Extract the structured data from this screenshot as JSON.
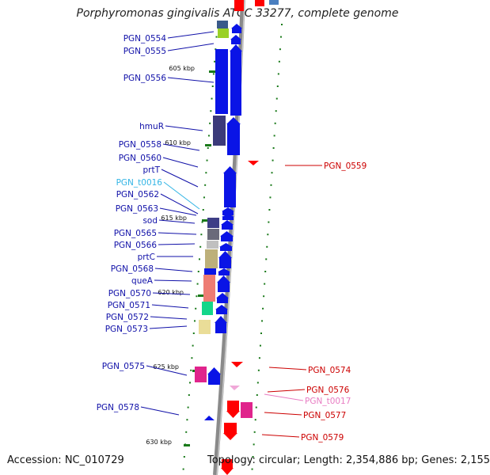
{
  "title": "Porphyromonas gingivalis ATCC 33277, complete genome",
  "accession": "Accession: NC_010729",
  "topology": "Topology: circular; Length: 2,354,886 bp; Genes: 2,155",
  "colors": {
    "plus_label": "#1010a8",
    "minus_label": "#cc0000",
    "trna_plus_label": "#33b5e5",
    "trna_minus_label": "#e87bc2",
    "plus_arrow": "#0a14e6",
    "minus_arrow": "#ff0000",
    "backbone": "#8a8a8a",
    "tick": "#1a7a1a"
  },
  "kbp_markers": [
    {
      "label": "605 kbp"
    },
    {
      "label": "610 kbp"
    },
    {
      "label": "615 kbp"
    },
    {
      "label": "620 kbp"
    },
    {
      "label": "625 kbp"
    },
    {
      "label": "630 kbp"
    }
  ],
  "genes_left": [
    {
      "name": "PGN_0554"
    },
    {
      "name": "PGN_0555"
    },
    {
      "name": "PGN_0556"
    },
    {
      "name": "hmuR"
    },
    {
      "name": "PGN_0558"
    },
    {
      "name": "PGN_0560"
    },
    {
      "name": "prtT"
    },
    {
      "name": "PGN_t0016",
      "trna": true
    },
    {
      "name": "PGN_0562"
    },
    {
      "name": "PGN_0563"
    },
    {
      "name": "sod"
    },
    {
      "name": "PGN_0565"
    },
    {
      "name": "PGN_0566"
    },
    {
      "name": "prtC"
    },
    {
      "name": "PGN_0568"
    },
    {
      "name": "queA"
    },
    {
      "name": "PGN_0570"
    },
    {
      "name": "PGN_0571"
    },
    {
      "name": "PGN_0572"
    },
    {
      "name": "PGN_0573"
    },
    {
      "name": "PGN_0575"
    },
    {
      "name": "PGN_0578"
    }
  ],
  "genes_right": [
    {
      "name": "PGN_0559"
    },
    {
      "name": "PGN_0574"
    },
    {
      "name": "PGN_0576"
    },
    {
      "name": "PGN_t0017",
      "trna": true
    },
    {
      "name": "PGN_0577"
    },
    {
      "name": "PGN_0579"
    }
  ]
}
